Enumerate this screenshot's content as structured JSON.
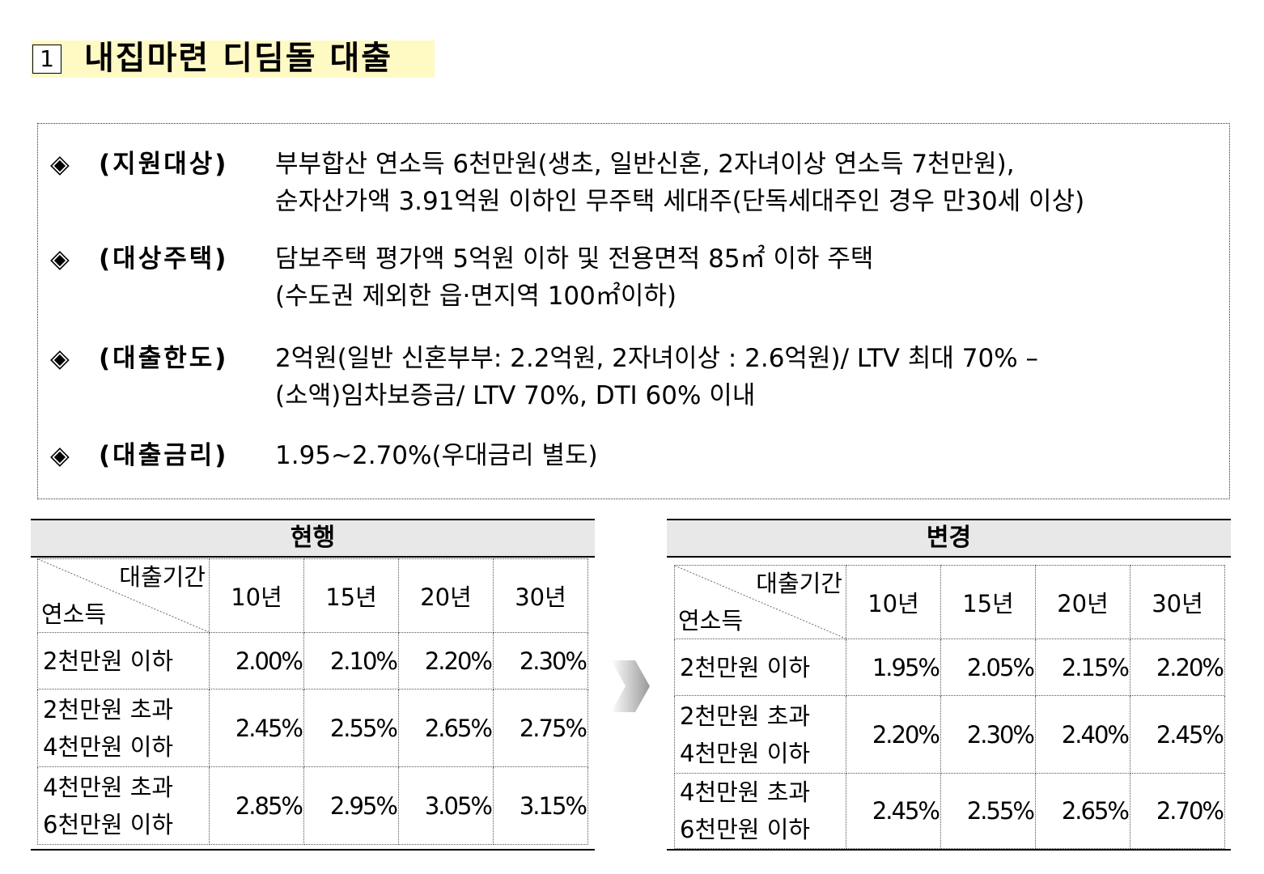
{
  "header": {
    "number": "1",
    "title": "내집마련 디딤돌 대출"
  },
  "bullet": "◈",
  "items": [
    {
      "label": "(지원대상)",
      "lines": [
        "부부합산 연소득 6천만원(생초, 일반신혼, 2자녀이상 연소득 7천만원),",
        "순자산가액 3.91억원 이하인 무주택 세대주(단독세대주인 경우 만30세 이상)"
      ]
    },
    {
      "label": "(대상주택)",
      "lines": [
        "담보주택 평가액 5억원 이하 및 전용면적 85㎡ 이하 주택",
        "(수도권 제외한 읍·면지역 100㎡이하)"
      ]
    },
    {
      "label": "(대출한도)",
      "lines": [
        "2억원(일반 신혼부부: 2.2억원, 2자녀이상 : 2.6억원)/ LTV 최대 70% –",
        "(소액)임차보증금/ LTV 70%, DTI 60% 이내"
      ]
    },
    {
      "label": "(대출금리)",
      "lines": [
        "1.95∼2.70%(우대금리 별도)"
      ]
    }
  ],
  "tables": [
    {
      "title": "현행",
      "corner_top": "대출기간",
      "corner_bottom": "연소득",
      "columns": [
        "10년",
        "15년",
        "20년",
        "30년"
      ],
      "rows": [
        {
          "label": [
            "2천만원 이하"
          ],
          "values": [
            "2.00%",
            "2.10%",
            "2.20%",
            "2.30%"
          ]
        },
        {
          "label": [
            "2천만원 초과",
            "4천만원 이하"
          ],
          "values": [
            "2.45%",
            "2.55%",
            "2.65%",
            "2.75%"
          ]
        },
        {
          "label": [
            "4천만원 초과",
            "6천만원 이하"
          ],
          "values": [
            "2.85%",
            "2.95%",
            "3.05%",
            "3.15%"
          ]
        }
      ]
    },
    {
      "title": "변경",
      "corner_top": "대출기간",
      "corner_bottom": "연소득",
      "columns": [
        "10년",
        "15년",
        "20년",
        "30년"
      ],
      "rows": [
        {
          "label": [
            "2천만원 이하"
          ],
          "values": [
            "1.95%",
            "2.05%",
            "2.15%",
            "2.20%"
          ]
        },
        {
          "label": [
            "2천만원 초과",
            "4천만원 이하"
          ],
          "values": [
            "2.20%",
            "2.30%",
            "2.40%",
            "2.45%"
          ]
        },
        {
          "label": [
            "4천만원 초과",
            "6천만원 이하"
          ],
          "values": [
            "2.45%",
            "2.55%",
            "2.65%",
            "2.70%"
          ]
        }
      ]
    }
  ]
}
